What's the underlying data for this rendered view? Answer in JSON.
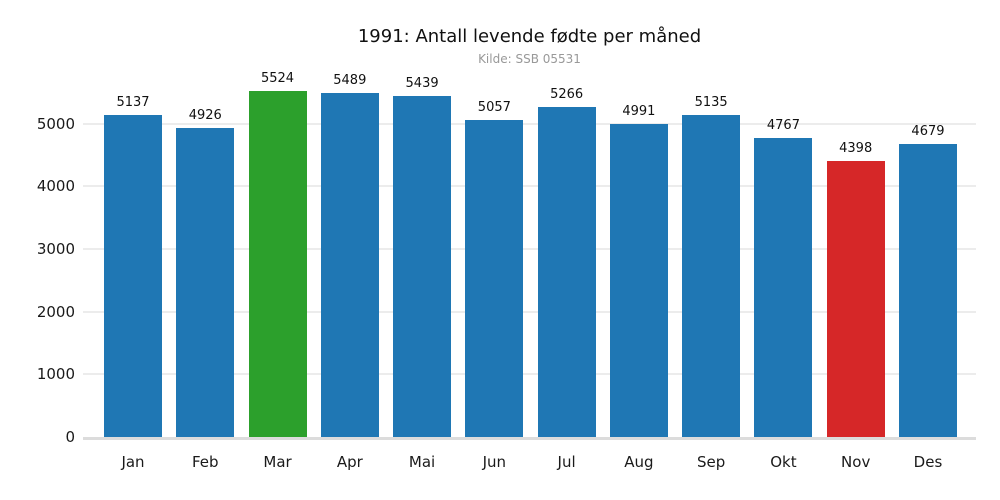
{
  "chart_data": {
    "type": "bar",
    "title": "1991: Antall levende fødte per måned",
    "subtitle": "Kilde: SSB 05531",
    "categories": [
      "Jan",
      "Feb",
      "Mar",
      "Apr",
      "Mai",
      "Jun",
      "Jul",
      "Aug",
      "Sep",
      "Okt",
      "Nov",
      "Des"
    ],
    "values": [
      5137,
      4926,
      5524,
      5489,
      5439,
      5057,
      5266,
      4991,
      5135,
      4767,
      4398,
      4679
    ],
    "bar_colors": [
      "#1f77b4",
      "#1f77b4",
      "#2ca02c",
      "#1f77b4",
      "#1f77b4",
      "#1f77b4",
      "#1f77b4",
      "#1f77b4",
      "#1f77b4",
      "#1f77b4",
      "#d62728",
      "#1f77b4"
    ],
    "yticks": [
      0,
      1000,
      2000,
      3000,
      4000,
      5000
    ],
    "ylim": [
      0,
      5750
    ],
    "xlabel": "",
    "ylabel": "",
    "grid": "horizontal",
    "value_labels": true,
    "legend": "none",
    "colors": {
      "background": "#ffffff",
      "bar_default": "#1f77b4",
      "bar_max": "#2ca02c",
      "bar_min": "#d62728",
      "gridline": "#ececec",
      "axis_baseline": "#dcdcdc",
      "title_text": "#111111",
      "subtitle_text": "#999999",
      "tick_text": "#1a1a1a"
    }
  }
}
